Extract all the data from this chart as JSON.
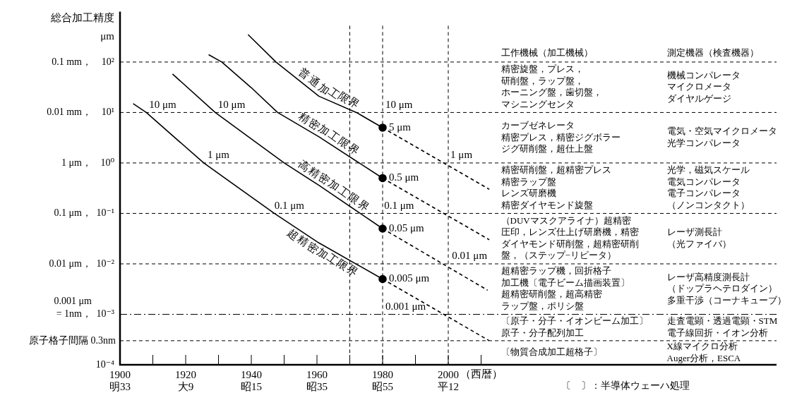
{
  "chart_data": {
    "type": "line",
    "ylabel": "総合加工精度\nμm",
    "xlabel": "（西暦）",
    "log": "y",
    "legend": false,
    "xlim": [
      1900,
      2100
    ],
    "xticks": [
      1900,
      {
        "value": 1910,
        "label": null
      },
      1920,
      {
        "value": 1930,
        "label": null
      },
      1940,
      {
        "value": 1950,
        "label": null
      },
      1960,
      {
        "value": 1970,
        "label": null
      },
      1980,
      {
        "value": 1990,
        "label": null
      },
      2000,
      {
        "value": 2010,
        "label": null
      }
    ],
    "ylim": [
      0.0001,
      1000
    ],
    "yticks": [
      {
        "value": 100,
        "label": "10²"
      },
      {
        "value": 10,
        "label": "10¹"
      },
      {
        "value": 1,
        "label": "10⁰"
      },
      {
        "value": 0.1,
        "label": "10⁻¹"
      },
      {
        "value": 0.01,
        "label": "10⁻²"
      },
      {
        "value": 0.001,
        "label": "10⁻³"
      },
      {
        "value": 0.0001,
        "label": "10⁻⁴"
      }
    ],
    "series": [
      {
        "name": "普通加工限界",
        "type": "line",
        "color": "#000000",
        "line_style": "solid",
        "x": [
          1939,
          1947.5,
          1960.6,
          1972,
          1980
        ],
        "values": [
          350,
          100,
          21,
          10,
          5
        ]
      },
      {
        "name": "精密加工限界",
        "type": "line",
        "color": "#000000",
        "line_style": "solid",
        "x": [
          1927,
          1931,
          1940,
          1948,
          1960.6,
          1980
        ],
        "values": [
          140,
          100,
          31,
          10,
          3.3,
          0.5
        ]
      },
      {
        "name": "高精密加工限界",
        "type": "line",
        "color": "#000000",
        "line_style": "solid",
        "x": [
          1916,
          1929,
          1940,
          1950,
          1960.6,
          1980
        ],
        "values": [
          58,
          10,
          3,
          1,
          0.36,
          0.05
        ]
      },
      {
        "name": "超精密加工限界",
        "type": "line",
        "color": "#000000",
        "line_style": "solid",
        "x": [
          1904,
          1908,
          1925.5,
          1947,
          1960.6,
          1980
        ],
        "values": [
          15,
          10,
          1,
          0.1,
          0.026,
          0.005
        ]
      },
      {
        "type": "line",
        "color": "#000000",
        "line_style": "dashed",
        "x": [
          1980,
          2012.5
        ],
        "values": [
          5,
          0.3
        ]
      },
      {
        "type": "line",
        "color": "#000000",
        "line_style": "dashed",
        "x": [
          1980,
          2012.5
        ],
        "values": [
          0.5,
          0.03
        ]
      },
      {
        "type": "line",
        "color": "#000000",
        "line_style": "dashed",
        "x": [
          1980,
          2012
        ],
        "values": [
          0.05,
          0.003
        ]
      },
      {
        "type": "line",
        "color": "#000000",
        "line_style": "dashed",
        "x": [
          1980,
          2012.5
        ],
        "values": [
          0.005,
          0.0003
        ]
      },
      {
        "type": "scatter",
        "color": "#000000",
        "marker": "circle",
        "x": [
          1980,
          1980,
          1980,
          1980
        ],
        "values": [
          5,
          0.5,
          0.05,
          0.005
        ],
        "value_labels": [
          "5 μm",
          "0.5 μm",
          "0.05 μm",
          "0.005 μm"
        ]
      }
    ],
    "ref_lines": [
      {
        "axis": "y",
        "value": 100,
        "line_style": "dashed",
        "label": "0.1 mm，"
      },
      {
        "axis": "y",
        "value": 10,
        "line_style": "dashed",
        "label": "0.01 mm，"
      },
      {
        "axis": "y",
        "value": 1,
        "line_style": "dashed",
        "label": "1 μm，"
      },
      {
        "axis": "y",
        "value": 0.1,
        "line_style": "dashed",
        "label": "0.1 μm，"
      },
      {
        "axis": "y",
        "value": 0.01,
        "line_style": "dashed",
        "label": "0.01 μm，"
      },
      {
        "axis": "y",
        "value": 0.001,
        "line_style": "dashdot",
        "label": "0.001 μm\n= 1nm，"
      },
      {
        "axis": "y",
        "value": 0.0003,
        "line_style": "dashed",
        "label": "原子格子間隔 0.3nm"
      },
      {
        "axis": "x",
        "value": 1970,
        "line_style": "dashed"
      },
      {
        "axis": "x",
        "value": 1980,
        "line_style": "dashed"
      },
      {
        "axis": "x",
        "value": 2000,
        "line_style": "dashed"
      }
    ],
    "annotations": [
      {
        "text": "10 μm",
        "x": 1913,
        "y": 10
      },
      {
        "text": "10 μm",
        "x": 1934,
        "y": 10
      },
      {
        "text": "1 μm",
        "x": 1930,
        "y": 1
      },
      {
        "text": "0.1 μm",
        "x": 1951.6,
        "y": 0.1
      },
      {
        "text": "10 μm",
        "x": 1985,
        "y": 10
      },
      {
        "text": "1 μm",
        "x": 2004,
        "y": 1
      },
      {
        "text": "0.1 μm",
        "x": 1985,
        "y": 0.1
      },
      {
        "text": "0.01 μm",
        "x": 2006.5,
        "y": 0.01
      },
      {
        "text": "0.001 μm",
        "x": 1987,
        "y": 0.001
      },
      "工作機械（加工機械）",
      "測定機器（検査機器）",
      "精密旋盤，プレス，",
      "研削盤，ラップ盤，",
      "ホーニング盤，歯切盤，",
      "マシニングセンタ",
      "機械コンパレータ",
      "マイクロメータ",
      "ダイヤルゲージ",
      "カーブゼネレータ",
      "精密プレス，精密ジグボラー",
      "ジグ研削盤，超仕上盤",
      "電気・空気マイクロメータ",
      "光学コンパレータ",
      "精密研削盤，超精密プレス",
      "精密ラップ盤",
      "レンズ研磨機",
      "精密ダイヤモンド旋盤",
      "光学，磁気スケール",
      "電気コンパレータ",
      "電子コンパレータ",
      "（ノンコンタクト）",
      "（DUVマスクアライナ）超精密",
      "圧印，レンズ仕上げ研磨機，精密",
      "ダイヤモンド研削盤，超精密研削",
      "盤，（ステップ−リピータ）",
      "レーザ測長計",
      "（光ファイバ）",
      "超精密ラップ機，回折格子",
      "加工機〔電子ビーム描画装置〕",
      "超精密研削盤，超高精密",
      "ラップ盤，ポリシ盤",
      "レーザ高精度測長計",
      "（ドップラヘテロダイン）",
      "多重干渉（コーナキューブ）",
      "〔原子・分子・イオンビーム加工〕",
      "原子・分子配列加工",
      "走査電顕・透過電顕・STM",
      "電子線回折・イオン分析",
      "〔物質合成加工超格子〕",
      "X線マイクロ分析",
      "Auger分析，ESCA",
      "〔　〕：半導体ウェーハ処理",
      "明33",
      "大9",
      "昭15",
      "昭35",
      "昭55",
      "平12"
    ]
  }
}
